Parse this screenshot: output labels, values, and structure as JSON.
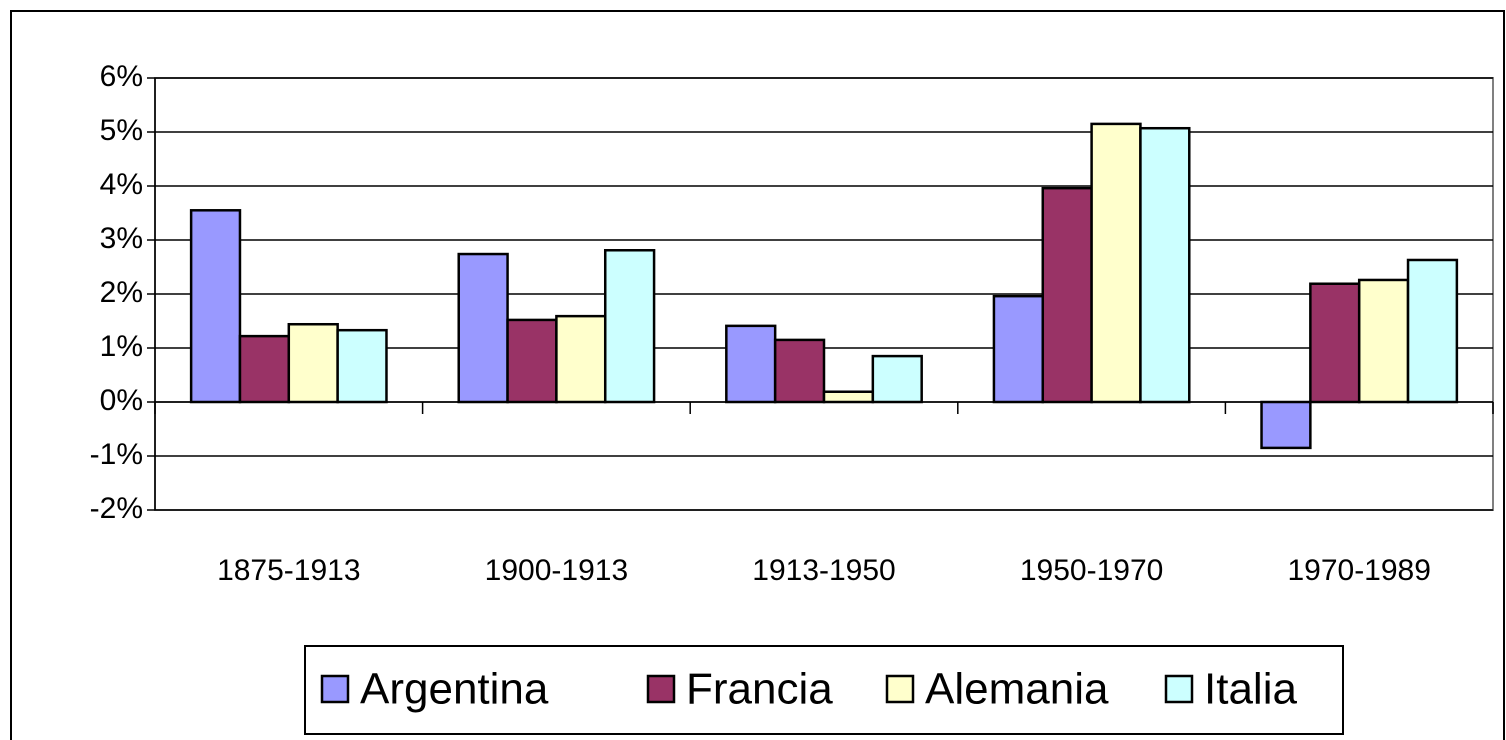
{
  "chart_data": {
    "type": "bar",
    "categories": [
      "1875-1913",
      "1900-1913",
      "1913-1950",
      "1950-1970",
      "1970-1989"
    ],
    "series": [
      {
        "name": "Argentina",
        "color": "#9999ff",
        "values": [
          3.55,
          2.74,
          1.41,
          1.96,
          -0.85
        ]
      },
      {
        "name": "Francia",
        "color": "#993366",
        "values": [
          1.22,
          1.52,
          1.15,
          3.96,
          2.19
        ]
      },
      {
        "name": "Alemania",
        "color": "#ffffcc",
        "values": [
          1.44,
          1.59,
          0.19,
          5.15,
          2.26
        ]
      },
      {
        "name": "Italia",
        "color": "#ccffff",
        "values": [
          1.33,
          2.81,
          0.85,
          5.07,
          2.63
        ]
      }
    ],
    "ylim": [
      -2,
      6
    ],
    "yticks": [
      {
        "value": -2,
        "label": "-2%"
      },
      {
        "value": -1,
        "label": "-1%"
      },
      {
        "value": 0,
        "label": "0%"
      },
      {
        "value": 1,
        "label": "1%"
      },
      {
        "value": 2,
        "label": "2%"
      },
      {
        "value": 3,
        "label": "3%"
      },
      {
        "value": 4,
        "label": "4%"
      },
      {
        "value": 5,
        "label": "5%"
      },
      {
        "value": 6,
        "label": "6%"
      }
    ],
    "grid": true
  }
}
